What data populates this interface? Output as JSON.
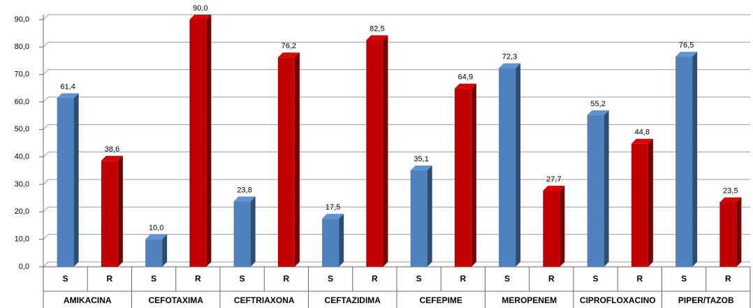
{
  "chart_data": {
    "type": "bar3d",
    "groups": [
      "AMIKACINA",
      "CEFOTAXIMA",
      "CEFTRIAXONA",
      "CEFTAZIDIMA",
      "CEFEPIME",
      "MEROPENEM",
      "CIPROFLOXACINO",
      "PIPER/TAZOB"
    ],
    "categories": [
      "S",
      "R",
      "S",
      "R",
      "S",
      "R",
      "S",
      "R",
      "S",
      "R",
      "S",
      "R",
      "S",
      "R",
      "S",
      "R"
    ],
    "values": [
      61.4,
      38.6,
      10.0,
      90.0,
      23.8,
      76.2,
      17.5,
      82.5,
      35.1,
      64.9,
      72.3,
      27.7,
      55.2,
      44.8,
      76.5,
      23.5
    ],
    "value_labels": [
      "61,4",
      "38,6",
      "10,0",
      "90,0",
      "23,8",
      "76,2",
      "17,5",
      "82,5",
      "35,1",
      "64,9",
      "72,3",
      "27,7",
      "55,2",
      "44,8",
      "76,5",
      "23,5"
    ],
    "colors": [
      "#4f81bd",
      "#c00000"
    ],
    "ylim": [
      0,
      90
    ],
    "yticks": [
      {
        "value": 0,
        "label": "0,0"
      },
      {
        "value": 10,
        "label": "10,0"
      },
      {
        "value": 20,
        "label": "20,0"
      },
      {
        "value": 30,
        "label": "30,0"
      },
      {
        "value": 40,
        "label": "40,0"
      },
      {
        "value": 50,
        "label": "50,0"
      },
      {
        "value": 60,
        "label": "60,0"
      },
      {
        "value": 70,
        "label": "70,0"
      },
      {
        "value": 80,
        "label": "80,0"
      },
      {
        "value": 90,
        "label": "90,0"
      }
    ],
    "grid": true
  }
}
